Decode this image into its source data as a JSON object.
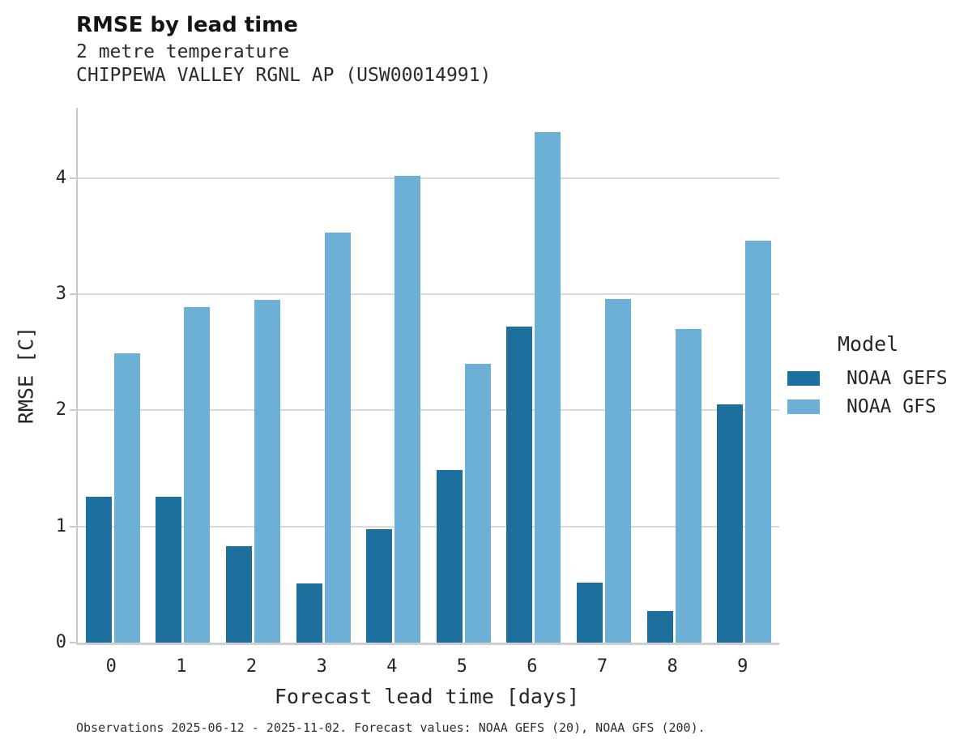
{
  "header": {
    "title": "RMSE by lead time",
    "subtitle_variable": "2 metre temperature",
    "subtitle_station": "CHIPPEWA VALLEY RGNL AP (USW00014991)"
  },
  "chart_data": {
    "type": "bar",
    "title": "RMSE by lead time",
    "xlabel": "Forecast lead time [days]",
    "ylabel": "RMSE [C]",
    "categories": [
      "0",
      "1",
      "2",
      "3",
      "4",
      "5",
      "6",
      "7",
      "8",
      "9"
    ],
    "series": [
      {
        "name": "NOAA GEFS",
        "color": "#1d6f9e",
        "values": [
          1.26,
          1.26,
          0.83,
          0.51,
          0.98,
          1.49,
          2.72,
          0.52,
          0.27,
          2.05
        ]
      },
      {
        "name": "NOAA GFS",
        "color": "#6cb0d8",
        "values": [
          2.49,
          2.89,
          2.95,
          3.53,
          4.02,
          2.4,
          4.4,
          2.96,
          2.7,
          3.46
        ]
      }
    ],
    "ylim": [
      0,
      4.607
    ],
    "yticks": [
      0,
      1,
      2,
      3,
      4
    ],
    "grid": true,
    "legend_title": "Model",
    "legend_position": "right"
  },
  "legend": {
    "title": "Model",
    "entries": [
      {
        "label": "NOAA GEFS",
        "color": "#1d6f9e"
      },
      {
        "label": "NOAA GFS",
        "color": "#6cb0d8"
      }
    ]
  },
  "footer": {
    "note": "Observations 2025-06-12 - 2025-11-02. Forecast values: NOAA GEFS (20), NOAA GFS (200)."
  },
  "colors": {
    "gridline": "#d9d9d9",
    "spine": "#c9c9c9",
    "background": "#ffffff",
    "text": "#262626"
  }
}
